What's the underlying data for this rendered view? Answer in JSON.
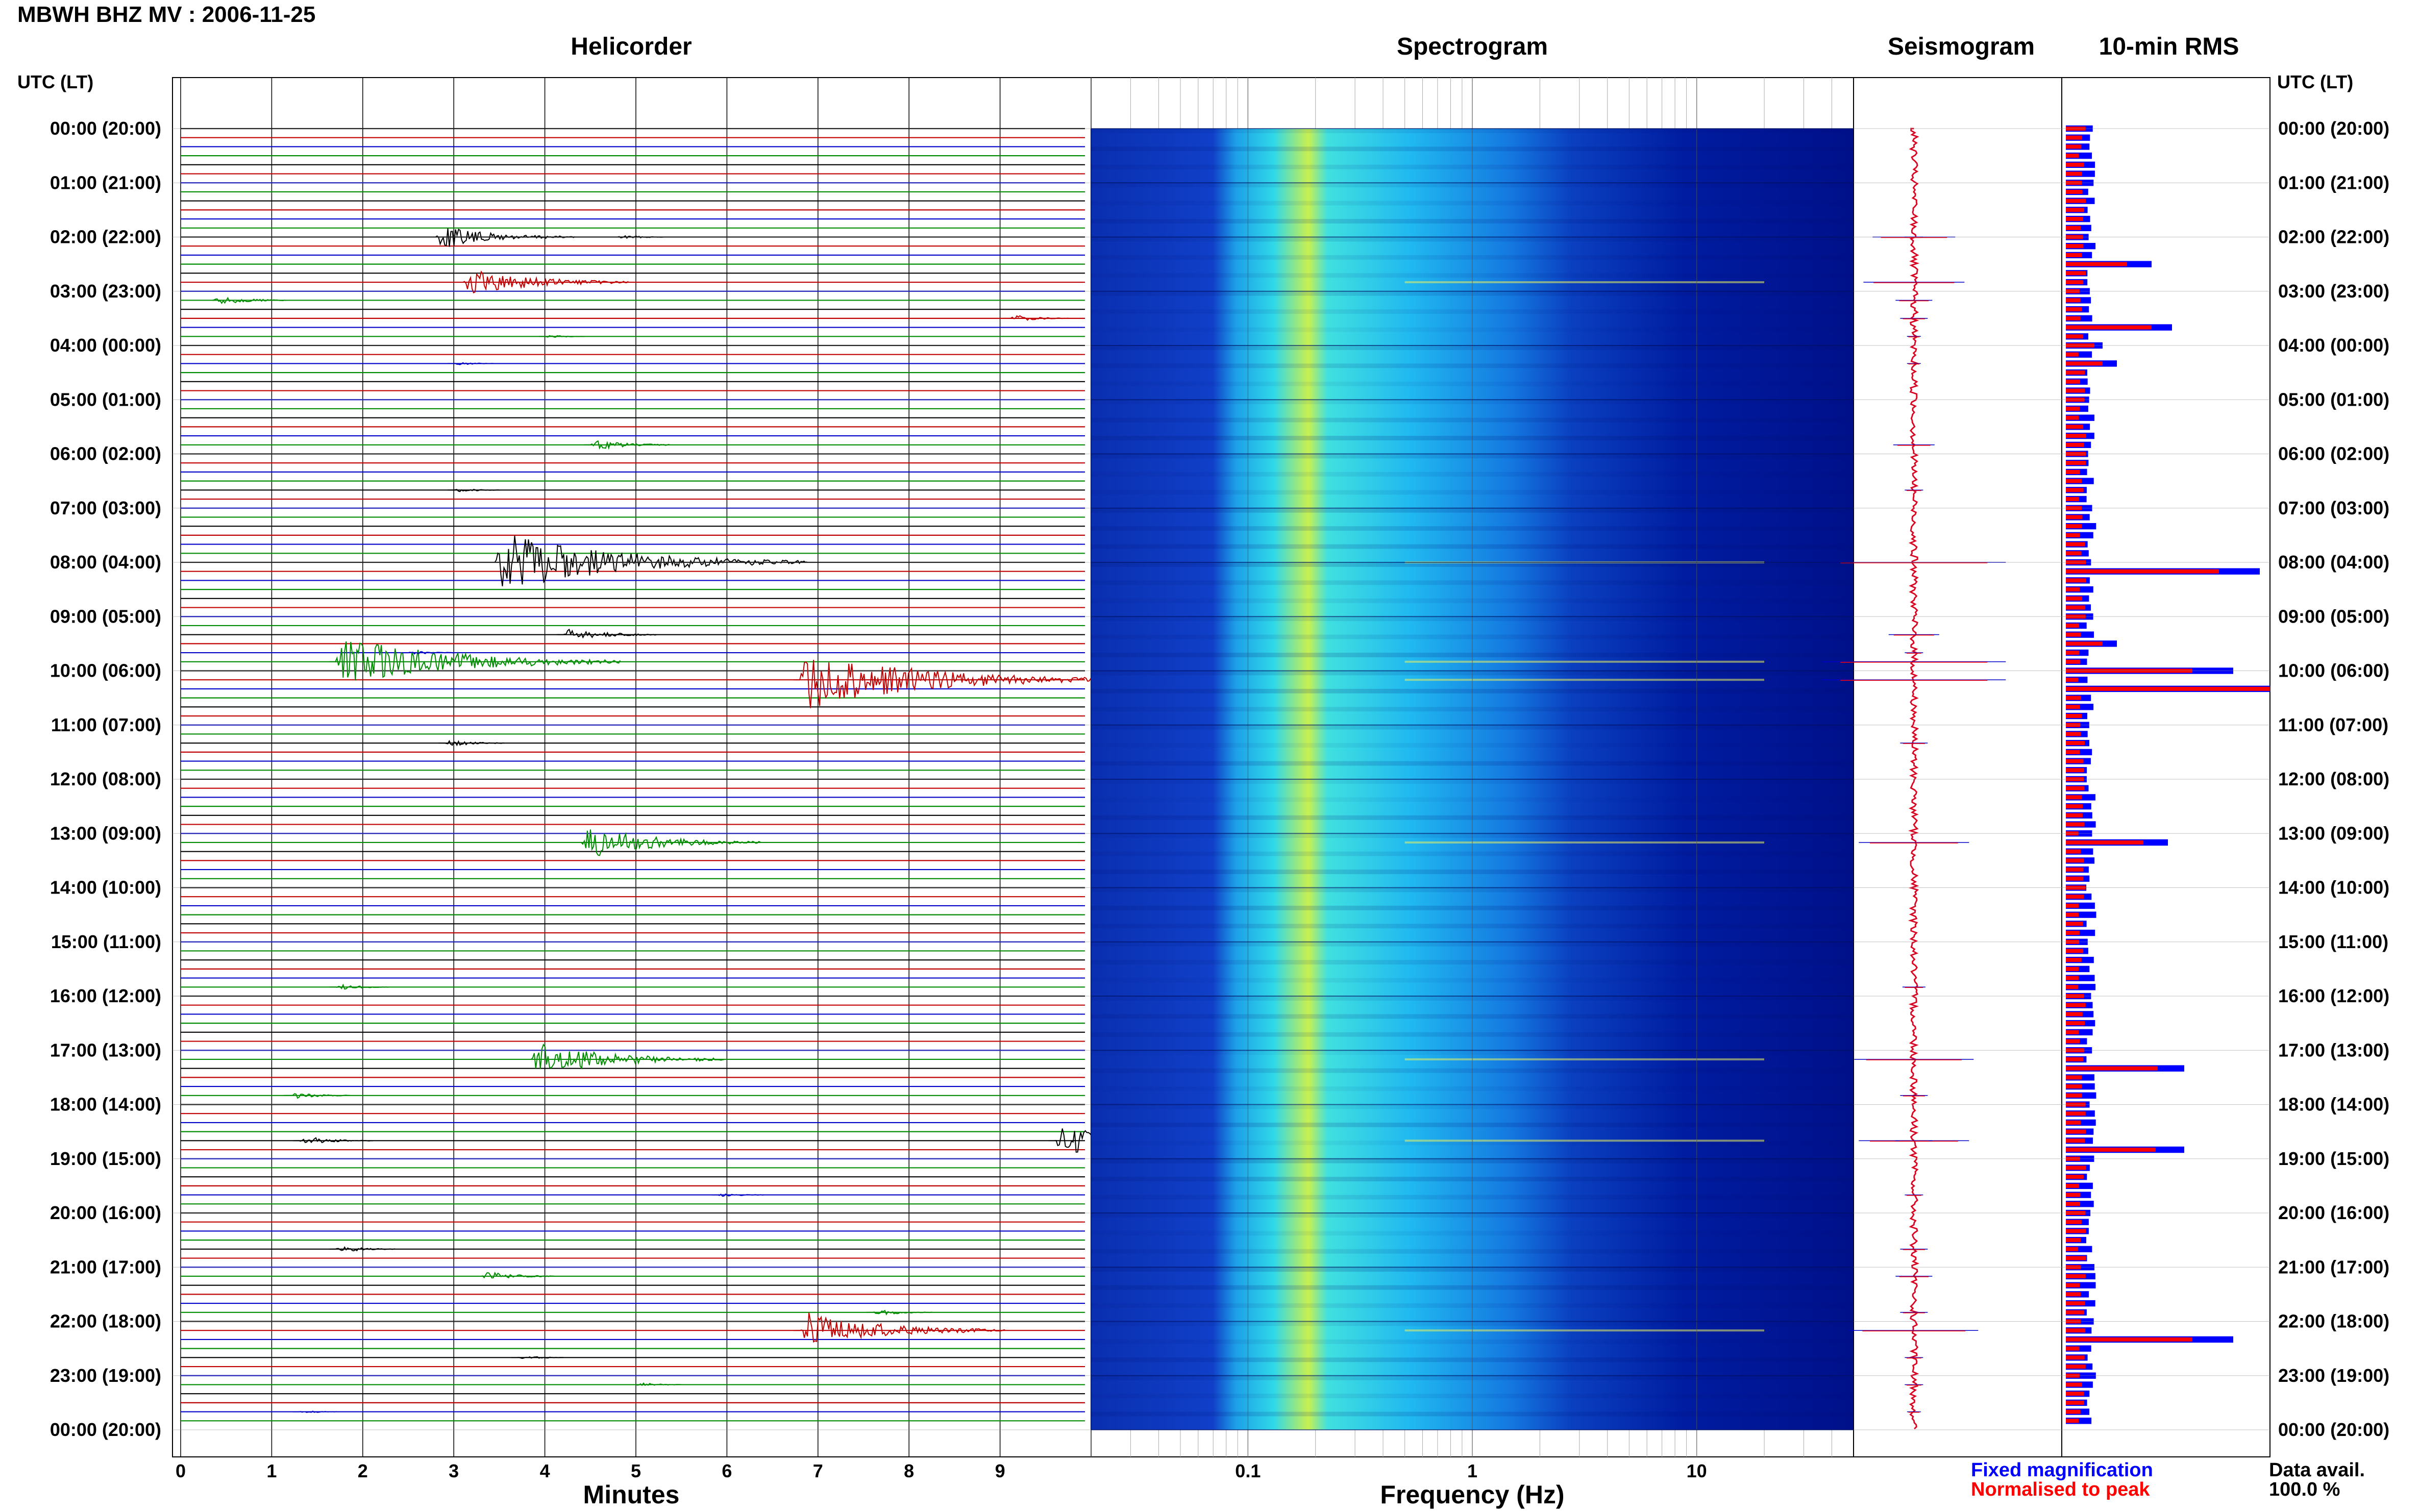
{
  "title": "MBWH BHZ MV : 2006-11-25",
  "colors": {
    "trace_black": "#000000",
    "trace_red": "#c00000",
    "trace_blue": "#0000c8",
    "trace_green": "#008c00",
    "fixed_magnification": "#0000ff",
    "normalised_to_peak": "#ff0000"
  },
  "helicorder": {
    "title": "Helicorder",
    "xlabel": "Minutes",
    "x_ticks": [
      "0",
      "1",
      "2",
      "3",
      "4",
      "5",
      "6",
      "7",
      "8",
      "9"
    ],
    "trace_color_cycle": [
      "black",
      "red",
      "blue",
      "green"
    ],
    "traces_per_hour": 6
  },
  "spectrogram": {
    "title": "Spectrogram",
    "xlabel": "Frequency (Hz)",
    "x_ticks": [
      "0.1",
      "1",
      "10"
    ],
    "colormap": "jet",
    "xscale": "log"
  },
  "seismogram": {
    "title": "Seismogram"
  },
  "rms": {
    "title": "10-min RMS",
    "legend": [
      "Fixed magnification",
      "Normalised to peak"
    ],
    "data_avail_label": "Data avail.",
    "data_avail_value": "100.0 %"
  },
  "time_axis": {
    "header": "UTC (LT)",
    "labels": [
      "00:00 (20:00)",
      "01:00 (21:00)",
      "02:00 (22:00)",
      "03:00 (23:00)",
      "04:00 (00:00)",
      "05:00 (01:00)",
      "06:00 (02:00)",
      "07:00 (03:00)",
      "08:00 (04:00)",
      "09:00 (05:00)",
      "10:00 (06:00)",
      "11:00 (07:00)",
      "12:00 (08:00)",
      "13:00 (09:00)",
      "14:00 (10:00)",
      "15:00 (11:00)",
      "16:00 (12:00)",
      "17:00 (13:00)",
      "18:00 (14:00)",
      "19:00 (15:00)",
      "20:00 (16:00)",
      "21:00 (17:00)",
      "22:00 (18:00)",
      "23:00 (19:00)",
      "00:00 (20:00)"
    ]
  },
  "chart_data": {
    "type": "helicorder",
    "rows": 144,
    "events": [
      {
        "row": 12,
        "minute": 2.8,
        "amplitude": 0.9
      },
      {
        "row": 12,
        "minute": 4.8,
        "amplitude": 0.2
      },
      {
        "row": 17,
        "minute": 3.1,
        "amplitude": 1.1
      },
      {
        "row": 19,
        "minute": 0.35,
        "amplitude": 0.4
      },
      {
        "row": 21,
        "minute": 9.1,
        "amplitude": 0.3
      },
      {
        "row": 23,
        "minute": 4.0,
        "amplitude": 0.15
      },
      {
        "row": 26,
        "minute": 3.0,
        "amplitude": 0.15
      },
      {
        "row": 35,
        "minute": 4.5,
        "amplitude": 0.45
      },
      {
        "row": 40,
        "minute": 3.0,
        "amplitude": 0.2
      },
      {
        "row": 48,
        "minute": 3.45,
        "amplitude": 2.2
      },
      {
        "row": 56,
        "minute": 4.2,
        "amplitude": 0.55
      },
      {
        "row": 59,
        "minute": 1.7,
        "amplitude": 2.0
      },
      {
        "row": 58,
        "minute": 2.5,
        "amplitude": 0.2
      },
      {
        "row": 61,
        "minute": 6.8,
        "amplitude": 2.2
      },
      {
        "row": 68,
        "minute": 2.9,
        "amplitude": 0.3
      },
      {
        "row": 79,
        "minute": 4.4,
        "amplitude": 1.2
      },
      {
        "row": 95,
        "minute": 1.7,
        "amplitude": 0.25
      },
      {
        "row": 103,
        "minute": 3.85,
        "amplitude": 1.3
      },
      {
        "row": 107,
        "minute": 1.2,
        "amplitude": 0.3
      },
      {
        "row": 112,
        "minute": 9.6,
        "amplitude": 1.2
      },
      {
        "row": 112,
        "minute": 1.3,
        "amplitude": 0.4
      },
      {
        "row": 118,
        "minute": 5.9,
        "amplitude": 0.2
      },
      {
        "row": 124,
        "minute": 1.7,
        "amplitude": 0.3
      },
      {
        "row": 127,
        "minute": 3.3,
        "amplitude": 0.4
      },
      {
        "row": 131,
        "minute": 7.6,
        "amplitude": 0.3
      },
      {
        "row": 133,
        "minute": 6.8,
        "amplitude": 1.4
      },
      {
        "row": 136,
        "minute": 3.7,
        "amplitude": 0.2
      },
      {
        "row": 139,
        "minute": 5.0,
        "amplitude": 0.2
      },
      {
        "row": 142,
        "minute": 1.3,
        "amplitude": 0.15
      }
    ],
    "rms_peaks": [
      {
        "row": 15,
        "blue": 0.42,
        "red": 0.3
      },
      {
        "row": 22,
        "blue": 0.52,
        "red": 0.42
      },
      {
        "row": 24,
        "blue": 0.18,
        "red": 0.14
      },
      {
        "row": 26,
        "blue": 0.25,
        "red": 0.18
      },
      {
        "row": 49,
        "blue": 0.95,
        "red": 0.75
      },
      {
        "row": 57,
        "blue": 0.25,
        "red": 0.18
      },
      {
        "row": 60,
        "blue": 0.82,
        "red": 0.62
      },
      {
        "row": 62,
        "blue": 1.0,
        "red": 1.0
      },
      {
        "row": 79,
        "blue": 0.5,
        "red": 0.38
      },
      {
        "row": 104,
        "blue": 0.58,
        "red": 0.45
      },
      {
        "row": 113,
        "blue": 0.58,
        "red": 0.44
      },
      {
        "row": 134,
        "blue": 0.82,
        "red": 0.62
      }
    ]
  }
}
